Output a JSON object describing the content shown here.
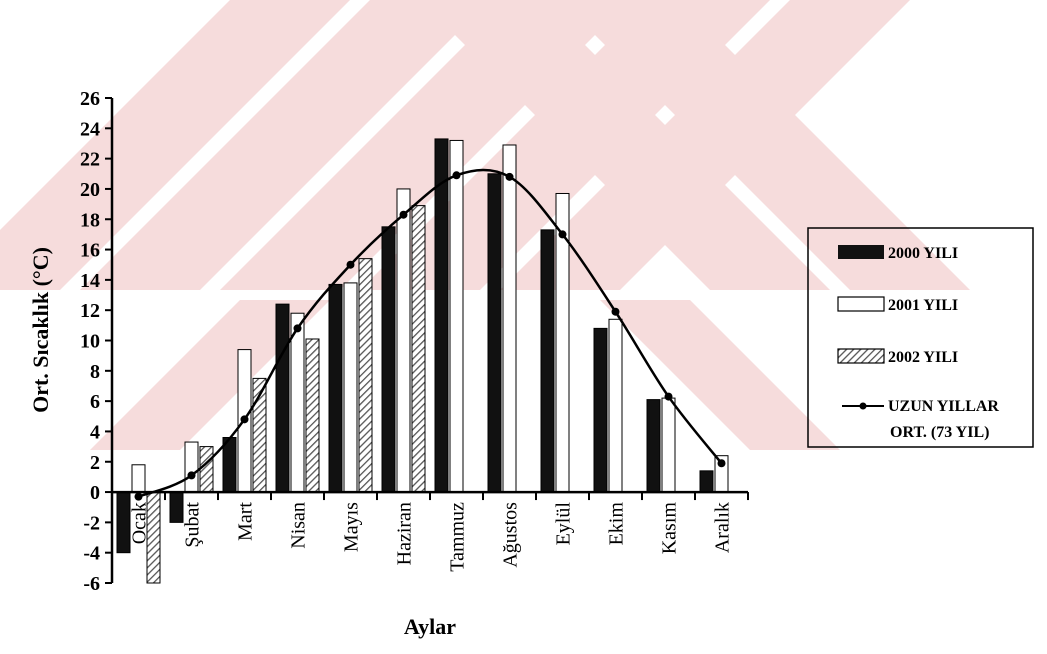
{
  "colors": {
    "background": "#ffffff",
    "axis": "#000000",
    "series_2000": "#111111",
    "series_2001": "#ffffff",
    "series_2002_hatch": "#555555",
    "line": "#000000",
    "watermark": "#f6dcdc"
  },
  "chart_data": {
    "type": "bar",
    "title": "",
    "xlabel": "Aylar",
    "ylabel": "Ort. Sıcaklık  (°C)",
    "ylim": [
      -6,
      26
    ],
    "yticks": [
      26,
      24,
      22,
      20,
      18,
      16,
      14,
      12,
      10,
      8,
      6,
      4,
      2,
      0,
      -2,
      -4,
      -6
    ],
    "grid": false,
    "legend_position": "right",
    "categories": [
      "Ocak",
      "Şubat",
      "Mart",
      "Nisan",
      "Mayıs",
      "Haziran",
      "Tammuz",
      "Ağustos",
      "Eylül",
      "Ekim",
      "Kasım",
      "Aralık"
    ],
    "series": [
      {
        "name": "2000 YILI",
        "kind": "bar",
        "fill": "solid-dark",
        "values": [
          -4.0,
          -2.0,
          3.6,
          12.4,
          13.7,
          17.5,
          23.3,
          21.0,
          17.3,
          10.8,
          6.1,
          1.4
        ]
      },
      {
        "name": "2001 YILI",
        "kind": "bar",
        "fill": "white",
        "values": [
          1.8,
          3.3,
          9.4,
          11.8,
          13.8,
          20.0,
          23.2,
          22.9,
          19.7,
          11.4,
          6.2,
          2.4
        ]
      },
      {
        "name": "2002 YILI",
        "kind": "bar",
        "fill": "hatched",
        "values": [
          -6.0,
          3.0,
          7.5,
          10.1,
          15.4,
          18.9,
          null,
          null,
          null,
          null,
          null,
          null
        ]
      },
      {
        "name": "UZUN YILLAR ORT. (73 YIL)",
        "name_lines": [
          "UZUN YILLAR",
          "ORT. (73 YIL)"
        ],
        "kind": "line",
        "values": [
          -0.3,
          1.1,
          4.8,
          10.8,
          15.0,
          18.3,
          20.9,
          20.8,
          17.0,
          11.9,
          6.3,
          1.9
        ]
      }
    ]
  }
}
